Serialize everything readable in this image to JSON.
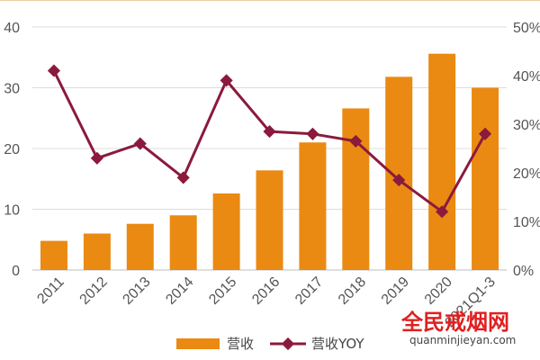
{
  "chart_data": {
    "type": "bar",
    "categories": [
      "2011",
      "2012",
      "2013",
      "2014",
      "2015",
      "2016",
      "2017",
      "2018",
      "2019",
      "2020",
      "2021Q1-3"
    ],
    "series": [
      {
        "name": "营收",
        "type": "bar",
        "axis": "left",
        "color": "#ea8a12",
        "values": [
          4.8,
          6.0,
          7.6,
          9.0,
          12.6,
          16.4,
          21.0,
          26.6,
          31.8,
          35.6,
          30.0
        ]
      },
      {
        "name": "营收YOY",
        "type": "line",
        "axis": "right",
        "color": "#8b1a3d",
        "values": [
          0.41,
          0.23,
          0.26,
          0.19,
          0.39,
          0.285,
          0.28,
          0.265,
          0.185,
          0.12,
          0.28
        ]
      }
    ],
    "y_left": {
      "min": 0,
      "max": 40,
      "ticks": [
        "0",
        "10",
        "20",
        "30",
        "40"
      ]
    },
    "y_right": {
      "min": 0,
      "max": 0.5,
      "ticks": [
        "0%",
        "10%",
        "20%",
        "30%",
        "40%",
        "50%"
      ]
    },
    "grid": true,
    "legend_position": "bottom"
  },
  "legend": {
    "bar_label": "营收",
    "line_label": "营收YOY"
  },
  "watermark": {
    "title": "全民戒烟网",
    "url": "quanminjieyan.com"
  }
}
